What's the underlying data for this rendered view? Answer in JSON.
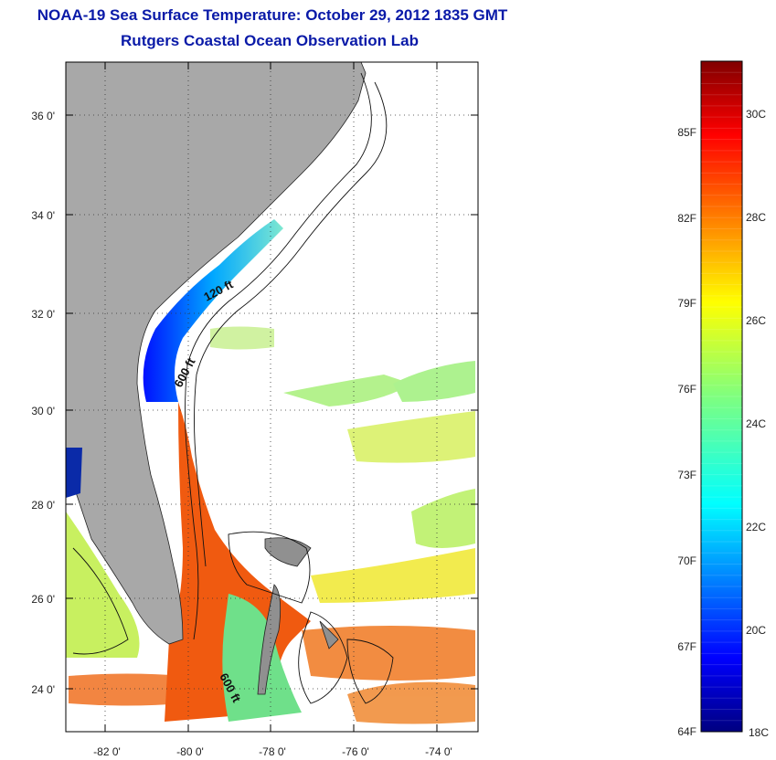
{
  "header": {
    "title": "NOAA-19 Sea Surface Temperature:  October 29, 2012 1835 GMT",
    "subtitle": "Rutgers Coastal Ocean Observation Lab"
  },
  "map": {
    "lat_ticks": [
      "36 0'",
      "34 0'",
      "32 0'",
      "30 0'",
      "28 0'",
      "26 0'",
      "24 0'"
    ],
    "lon_ticks": [
      "-82 0'",
      "-80 0'",
      "-78 0'",
      "-76 0'",
      "-74 0'"
    ],
    "lat_range": [
      23,
      37
    ],
    "lon_range": [
      -83,
      -73
    ],
    "contour_labels": [
      {
        "text": "120 ft"
      },
      {
        "text": "600 ft"
      },
      {
        "text": "600 ft"
      }
    ],
    "colors": {
      "land": "#a8a8a8",
      "ocean_nodata": "#ffffff",
      "gulf_stream": "#f05a10",
      "grid": "#333333"
    }
  },
  "colorbar": {
    "min_label": "64F",
    "max_label_c_bottom": "18C",
    "fahrenheit_labels": [
      "85F",
      "82F",
      "79F",
      "76F",
      "73F",
      "70F",
      "67F"
    ],
    "celsius_labels": [
      "30C",
      "28C",
      "26C",
      "24C",
      "22C",
      "20C"
    ],
    "colormap": "jet",
    "range_c": [
      18,
      31.5
    ]
  }
}
